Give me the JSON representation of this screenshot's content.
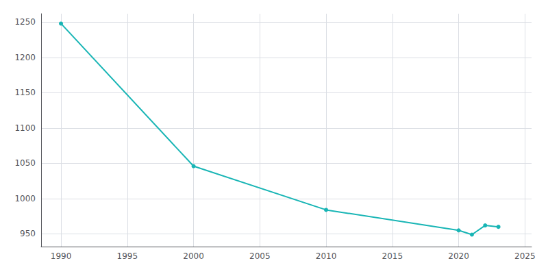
{
  "chart_data": {
    "type": "line",
    "x": [
      1990,
      2000,
      2010,
      2020,
      2021,
      2022,
      2023
    ],
    "values": [
      1248,
      1046,
      984,
      955,
      949,
      962,
      960
    ],
    "color": "#18b5b5",
    "marker": "circle",
    "xlim": [
      1988.5,
      2025.5
    ],
    "ylim": [
      932,
      1262
    ],
    "xticks": [
      1990,
      1995,
      2000,
      2005,
      2010,
      2015,
      2020,
      2025
    ],
    "yticks": [
      950,
      1000,
      1050,
      1100,
      1150,
      1200,
      1250
    ],
    "grid": true
  }
}
